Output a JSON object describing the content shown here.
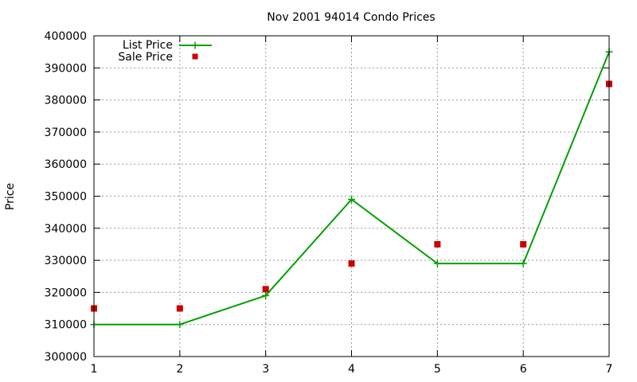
{
  "chart_data": {
    "type": "line",
    "title": "Nov 2001 94014 Condo Prices",
    "xlabel": "",
    "ylabel": "Price",
    "x": [
      1,
      2,
      3,
      4,
      5,
      6,
      7
    ],
    "xlim": [
      1,
      7
    ],
    "ylim": [
      300000,
      400000
    ],
    "xticks": [
      1,
      2,
      3,
      4,
      5,
      6,
      7
    ],
    "yticks": [
      300000,
      310000,
      320000,
      330000,
      340000,
      350000,
      360000,
      370000,
      380000,
      390000,
      400000
    ],
    "grid": true,
    "legend_position": "top-left",
    "series": [
      {
        "name": "List Price",
        "style": "line with plus markers",
        "color": "#00a000",
        "values": [
          310000,
          310000,
          319000,
          349000,
          329000,
          329000,
          395000
        ]
      },
      {
        "name": "Sale Price",
        "style": "square markers",
        "color": "#cc0000",
        "values": [
          315000,
          315000,
          321000,
          329000,
          335000,
          335000,
          385000
        ]
      }
    ]
  }
}
